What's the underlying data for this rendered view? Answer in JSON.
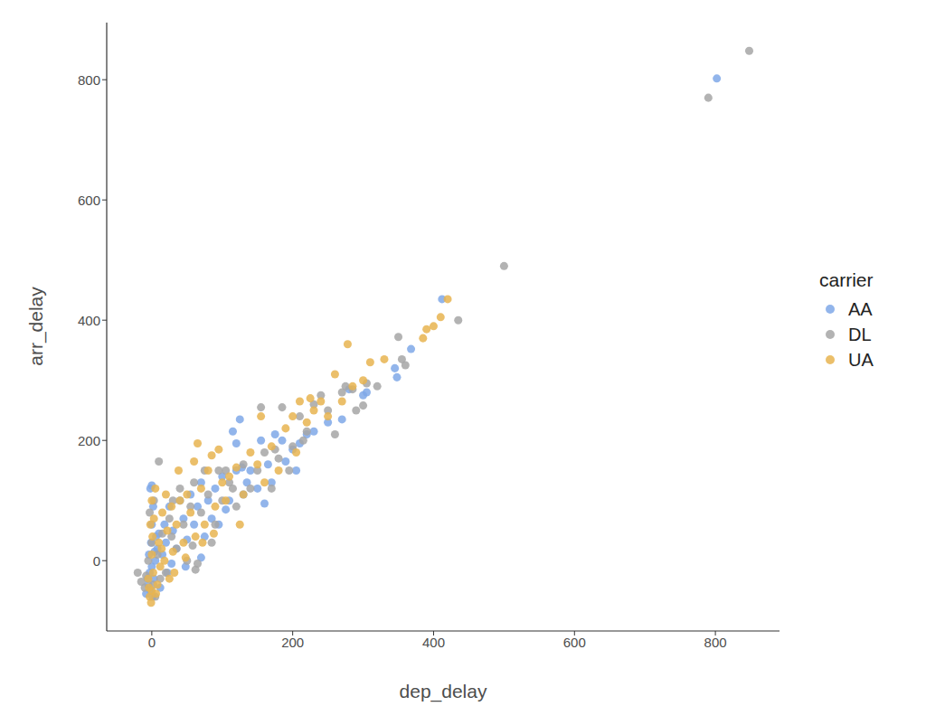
{
  "chart_data": {
    "type": "scatter",
    "x_label": "dep_delay",
    "y_label": "arr_delay",
    "legend_title": "carrier",
    "legend": "right",
    "grid": false,
    "marker": "circle",
    "xlim": [
      -64,
      891
    ],
    "xticks": [
      0,
      200,
      400,
      600,
      800
    ],
    "ylim": [
      -117,
      895
    ],
    "yticks": [
      0,
      200,
      400,
      600,
      800
    ],
    "series": [
      {
        "name": "AA",
        "color": "#7fa8e8",
        "values": [
          [
            -5,
            -40
          ],
          [
            -3,
            -20
          ],
          [
            -2,
            -50
          ],
          [
            0,
            -10
          ],
          [
            -4,
            10
          ],
          [
            -1,
            30
          ],
          [
            0,
            60
          ],
          [
            2,
            90
          ],
          [
            -2,
            120
          ],
          [
            0,
            125
          ],
          [
            3,
            -30
          ],
          [
            5,
            0
          ],
          [
            8,
            20
          ],
          [
            10,
            45
          ],
          [
            12,
            -45
          ],
          [
            15,
            10
          ],
          [
            18,
            60
          ],
          [
            20,
            30
          ],
          [
            25,
            90
          ],
          [
            28,
            -5
          ],
          [
            30,
            50
          ],
          [
            35,
            20
          ],
          [
            40,
            100
          ],
          [
            45,
            70
          ],
          [
            50,
            35
          ],
          [
            55,
            110
          ],
          [
            60,
            60
          ],
          [
            65,
            90
          ],
          [
            70,
            130
          ],
          [
            75,
            40
          ],
          [
            80,
            100
          ],
          [
            85,
            70
          ],
          [
            90,
            120
          ],
          [
            95,
            60
          ],
          [
            100,
            140
          ],
          [
            105,
            85
          ],
          [
            110,
            100
          ],
          [
            115,
            215
          ],
          [
            120,
            150
          ],
          [
            125,
            235
          ],
          [
            120,
            195
          ],
          [
            130,
            110
          ],
          [
            140,
            150
          ],
          [
            150,
            120
          ],
          [
            155,
            200
          ],
          [
            160,
            95
          ],
          [
            165,
            160
          ],
          [
            170,
            130
          ],
          [
            175,
            210
          ],
          [
            185,
            200
          ],
          [
            190,
            165
          ],
          [
            200,
            185
          ],
          [
            205,
            150
          ],
          [
            210,
            195
          ],
          [
            220,
            210
          ],
          [
            230,
            215
          ],
          [
            250,
            230
          ],
          [
            270,
            235
          ],
          [
            280,
            285
          ],
          [
            300,
            275
          ],
          [
            305,
            280
          ],
          [
            345,
            320
          ],
          [
            348,
            305
          ],
          [
            368,
            352
          ],
          [
            412,
            435
          ],
          [
            802,
            802
          ],
          [
            -8,
            -55
          ],
          [
            -6,
            -30
          ],
          [
            1,
            -60
          ],
          [
            4,
            15
          ],
          [
            6,
            40
          ],
          [
            22,
            -20
          ],
          [
            48,
            -10
          ],
          [
            70,
            5
          ],
          [
            128,
            155
          ],
          [
            135,
            130
          ]
        ]
      },
      {
        "name": "DL",
        "color": "#a6a6a6",
        "values": [
          [
            -20,
            -20
          ],
          [
            -10,
            -45
          ],
          [
            -5,
            0
          ],
          [
            -3,
            80
          ],
          [
            0,
            30
          ],
          [
            2,
            -40
          ],
          [
            5,
            -60
          ],
          [
            10,
            165
          ],
          [
            8,
            10
          ],
          [
            15,
            45
          ],
          [
            20,
            -20
          ],
          [
            25,
            70
          ],
          [
            30,
            100
          ],
          [
            35,
            20
          ],
          [
            40,
            120
          ],
          [
            45,
            60
          ],
          [
            50,
            0
          ],
          [
            55,
            90
          ],
          [
            60,
            130
          ],
          [
            65,
            -5
          ],
          [
            70,
            80
          ],
          [
            75,
            150
          ],
          [
            80,
            110
          ],
          [
            90,
            60
          ],
          [
            100,
            100
          ],
          [
            105,
            150
          ],
          [
            110,
            130
          ],
          [
            120,
            90
          ],
          [
            130,
            160
          ],
          [
            140,
            120
          ],
          [
            150,
            150
          ],
          [
            155,
            255
          ],
          [
            160,
            180
          ],
          [
            170,
            120
          ],
          [
            180,
            170
          ],
          [
            185,
            255
          ],
          [
            200,
            190
          ],
          [
            210,
            240
          ],
          [
            220,
            215
          ],
          [
            230,
            260
          ],
          [
            240,
            275
          ],
          [
            250,
            250
          ],
          [
            260,
            210
          ],
          [
            270,
            280
          ],
          [
            275,
            290
          ],
          [
            285,
            285
          ],
          [
            290,
            250
          ],
          [
            300,
            258
          ],
          [
            305,
            295
          ],
          [
            320,
            290
          ],
          [
            350,
            372
          ],
          [
            355,
            335
          ],
          [
            360,
            325
          ],
          [
            435,
            400
          ],
          [
            500,
            490
          ],
          [
            790,
            770
          ],
          [
            848,
            848
          ],
          [
            -15,
            -35
          ],
          [
            -8,
            -25
          ],
          [
            3,
            100
          ],
          [
            12,
            -30
          ],
          [
            28,
            40
          ],
          [
            58,
            25
          ],
          [
            62,
            -15
          ],
          [
            85,
            30
          ],
          [
            95,
            150
          ],
          [
            115,
            120
          ],
          [
            175,
            185
          ],
          [
            195,
            150
          ],
          [
            215,
            200
          ]
        ]
      },
      {
        "name": "UA",
        "color": "#e8b450",
        "values": [
          [
            -5,
            -30
          ],
          [
            -3,
            -60
          ],
          [
            -1,
            -70
          ],
          [
            0,
            -50
          ],
          [
            2,
            -20
          ],
          [
            0,
            10
          ],
          [
            1,
            40
          ],
          [
            3,
            70
          ],
          [
            0,
            100
          ],
          [
            5,
            120
          ],
          [
            -2,
            60
          ],
          [
            8,
            -40
          ],
          [
            10,
            30
          ],
          [
            12,
            -10
          ],
          [
            15,
            80
          ],
          [
            18,
            0
          ],
          [
            20,
            110
          ],
          [
            22,
            50
          ],
          [
            25,
            -30
          ],
          [
            28,
            90
          ],
          [
            30,
            15
          ],
          [
            35,
            60
          ],
          [
            38,
            150
          ],
          [
            40,
            100
          ],
          [
            45,
            30
          ],
          [
            50,
            110
          ],
          [
            55,
            80
          ],
          [
            60,
            165
          ],
          [
            62,
            40
          ],
          [
            65,
            195
          ],
          [
            70,
            120
          ],
          [
            75,
            60
          ],
          [
            80,
            150
          ],
          [
            85,
            175
          ],
          [
            90,
            90
          ],
          [
            95,
            185
          ],
          [
            100,
            130
          ],
          [
            105,
            100
          ],
          [
            110,
            140
          ],
          [
            120,
            155
          ],
          [
            125,
            60
          ],
          [
            130,
            110
          ],
          [
            140,
            180
          ],
          [
            150,
            160
          ],
          [
            155,
            240
          ],
          [
            160,
            130
          ],
          [
            170,
            190
          ],
          [
            180,
            150
          ],
          [
            190,
            220
          ],
          [
            200,
            240
          ],
          [
            205,
            180
          ],
          [
            210,
            265
          ],
          [
            220,
            230
          ],
          [
            225,
            270
          ],
          [
            230,
            250
          ],
          [
            240,
            265
          ],
          [
            250,
            240
          ],
          [
            260,
            310
          ],
          [
            270,
            265
          ],
          [
            278,
            360
          ],
          [
            285,
            290
          ],
          [
            300,
            300
          ],
          [
            310,
            330
          ],
          [
            330,
            335
          ],
          [
            390,
            385
          ],
          [
            400,
            390
          ],
          [
            410,
            405
          ],
          [
            420,
            435
          ],
          [
            385,
            370
          ],
          [
            -4,
            -45
          ],
          [
            6,
            -55
          ],
          [
            14,
            20
          ],
          [
            32,
            -20
          ],
          [
            48,
            5
          ],
          [
            72,
            30
          ],
          [
            88,
            45
          ]
        ]
      }
    ]
  }
}
